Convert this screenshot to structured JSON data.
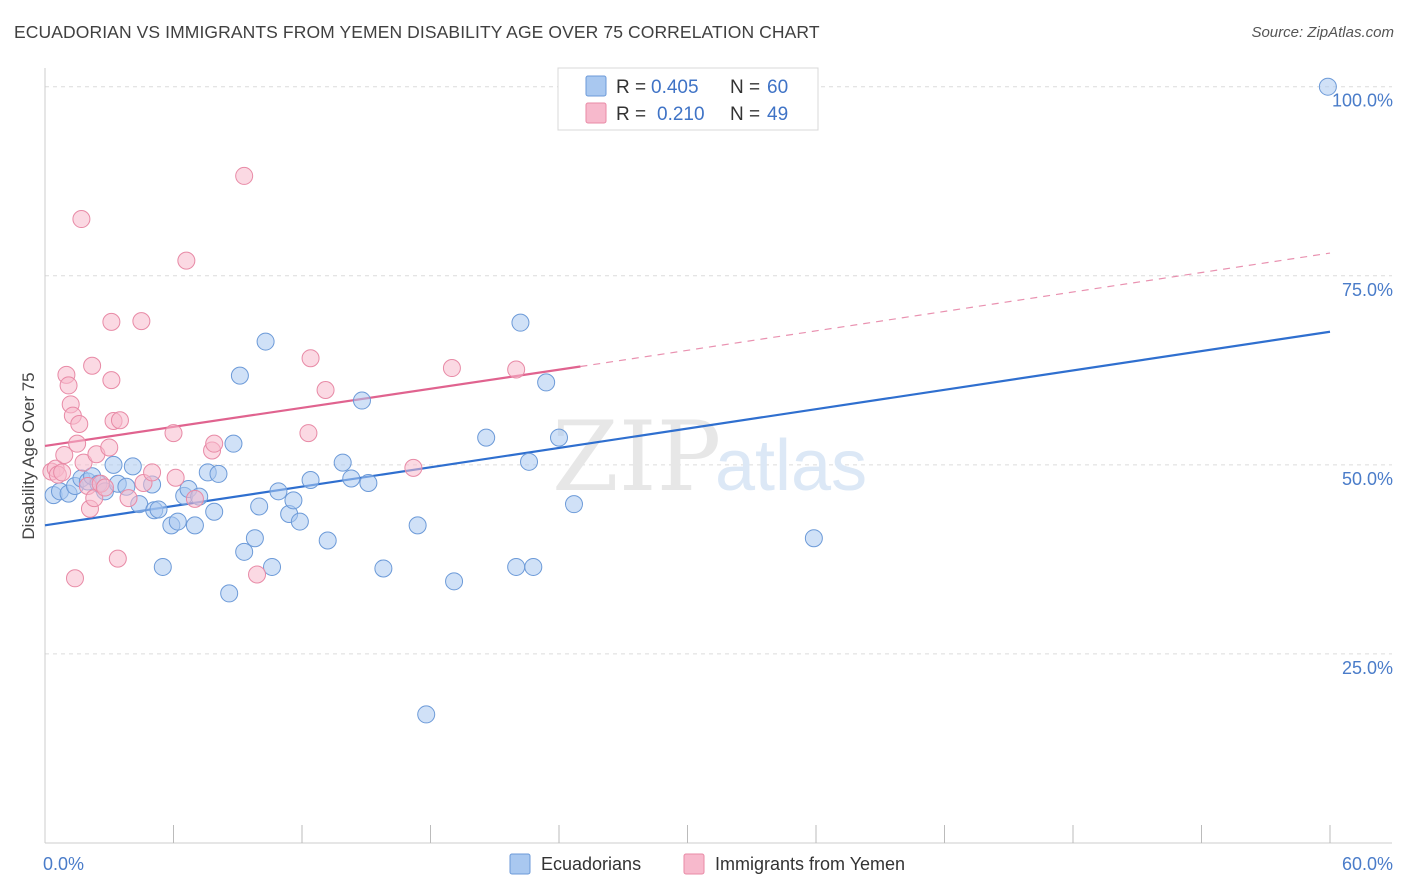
{
  "title": "ECUADORIAN VS IMMIGRANTS FROM YEMEN DISABILITY AGE OVER 75 CORRELATION CHART",
  "source": "Source: ZipAtlas.com",
  "watermark": {
    "zip": "ZIP",
    "atlas": "atlas"
  },
  "chart_data": {
    "type": "scatter",
    "ylabel": "Disability Age Over 75",
    "xlabel": "",
    "xlim": [
      0,
      60
    ],
    "ylim": [
      0,
      103
    ],
    "x_tick_labels": [
      "0.0%",
      "60.0%"
    ],
    "y_ticks": [
      25,
      50,
      75,
      100
    ],
    "y_tick_labels": [
      "25.0%",
      "50.0%",
      "75.0%",
      "100.0%"
    ],
    "grid": true,
    "legend": {
      "position": "top-center",
      "entries": [
        {
          "r_label": "R =",
          "r_value": "0.405",
          "n_label": "N =",
          "n_value": "60",
          "color": "#a9c8f0"
        },
        {
          "r_label": "R =",
          "r_value": "0.210",
          "n_label": "N =",
          "n_value": "49",
          "color": "#f7b9cc"
        }
      ]
    },
    "series": [
      {
        "name": "Ecuadorians",
        "color": "#a9c8f0",
        "stroke": "#6c9ad8",
        "trend": {
          "x": [
            0,
            60
          ],
          "y": [
            42,
            67.6
          ],
          "color": "#2f6fcf"
        },
        "points": [
          [
            0.4,
            46
          ],
          [
            0.7,
            46.5
          ],
          [
            1.1,
            46.2
          ],
          [
            1.4,
            47.2
          ],
          [
            1.7,
            48.2
          ],
          [
            2.0,
            47.8
          ],
          [
            2.2,
            48.5
          ],
          [
            2.5,
            47.5
          ],
          [
            2.8,
            46.5
          ],
          [
            3.2,
            50
          ],
          [
            3.4,
            47.5
          ],
          [
            3.8,
            47.1
          ],
          [
            4.1,
            49.8
          ],
          [
            4.4,
            44.8
          ],
          [
            5.0,
            47.4
          ],
          [
            5.1,
            44.0
          ],
          [
            5.3,
            44.1
          ],
          [
            5.5,
            36.5
          ],
          [
            5.9,
            42
          ],
          [
            6.2,
            42.5
          ],
          [
            6.5,
            45.9
          ],
          [
            6.7,
            46.8
          ],
          [
            7.0,
            42
          ],
          [
            7.2,
            45.8
          ],
          [
            7.6,
            49
          ],
          [
            7.9,
            43.8
          ],
          [
            8.1,
            48.8
          ],
          [
            8.6,
            33
          ],
          [
            8.8,
            52.8
          ],
          [
            9.1,
            61.8
          ],
          [
            9.3,
            38.5
          ],
          [
            9.8,
            40.3
          ],
          [
            10.0,
            44.5
          ],
          [
            10.3,
            66.3
          ],
          [
            10.6,
            36.5
          ],
          [
            10.9,
            46.5
          ],
          [
            11.4,
            43.5
          ],
          [
            11.6,
            45.3
          ],
          [
            11.9,
            42.5
          ],
          [
            12.4,
            48
          ],
          [
            13.2,
            40
          ],
          [
            13.9,
            50.3
          ],
          [
            14.3,
            48.2
          ],
          [
            14.8,
            58.5
          ],
          [
            15.1,
            47.6
          ],
          [
            15.8,
            36.3
          ],
          [
            17.4,
            42
          ],
          [
            17.8,
            17
          ],
          [
            19.1,
            34.6
          ],
          [
            20.6,
            53.6
          ],
          [
            22.0,
            36.5
          ],
          [
            22.2,
            68.8
          ],
          [
            22.6,
            50.4
          ],
          [
            22.8,
            36.5
          ],
          [
            23.4,
            60.9
          ],
          [
            24.0,
            53.6
          ],
          [
            24.7,
            44.8
          ],
          [
            35.9,
            40.3
          ],
          [
            59.9,
            100
          ]
        ]
      },
      {
        "name": "Immigrants from Yemen",
        "color": "#f7b9cc",
        "stroke": "#e88aa6",
        "trend": {
          "x": [
            0,
            25
          ],
          "y": [
            52.5,
            63
          ],
          "color": "#e0638f",
          "ext_x": [
            25,
            60
          ],
          "ext_y": [
            63,
            78
          ]
        },
        "points": [
          [
            0.3,
            49.1
          ],
          [
            0.5,
            49.5
          ],
          [
            0.6,
            48.7
          ],
          [
            0.8,
            49
          ],
          [
            0.9,
            51.3
          ],
          [
            1.0,
            61.9
          ],
          [
            1.1,
            60.5
          ],
          [
            1.2,
            58
          ],
          [
            1.3,
            56.5
          ],
          [
            1.4,
            35
          ],
          [
            1.5,
            52.8
          ],
          [
            1.6,
            55.4
          ],
          [
            1.8,
            50.3
          ],
          [
            1.7,
            82.5
          ],
          [
            2.0,
            47.2
          ],
          [
            2.1,
            44.2
          ],
          [
            2.2,
            63.1
          ],
          [
            2.3,
            45.6
          ],
          [
            2.4,
            51.4
          ],
          [
            2.6,
            47.5
          ],
          [
            2.8,
            47
          ],
          [
            3.0,
            52.3
          ],
          [
            3.1,
            61.2
          ],
          [
            3.2,
            55.8
          ],
          [
            3.1,
            68.9
          ],
          [
            3.4,
            37.6
          ],
          [
            3.5,
            55.9
          ],
          [
            3.9,
            45.6
          ],
          [
            4.5,
            69
          ],
          [
            4.6,
            47.6
          ],
          [
            5.0,
            49
          ],
          [
            6.0,
            54.2
          ],
          [
            6.1,
            48.3
          ],
          [
            6.6,
            77
          ],
          [
            7.0,
            45.5
          ],
          [
            7.8,
            51.9
          ],
          [
            7.9,
            52.8
          ],
          [
            9.3,
            88.2
          ],
          [
            9.9,
            35.5
          ],
          [
            12.3,
            54.2
          ],
          [
            12.4,
            64.1
          ],
          [
            13.1,
            59.9
          ],
          [
            17.2,
            49.6
          ],
          [
            19.0,
            62.8
          ],
          [
            22.0,
            62.6
          ]
        ]
      }
    ]
  },
  "bottom_legend": [
    {
      "label": "Ecuadorians",
      "color": "#a9c8f0"
    },
    {
      "label": "Immigrants from Yemen",
      "color": "#f7b9cc"
    }
  ]
}
